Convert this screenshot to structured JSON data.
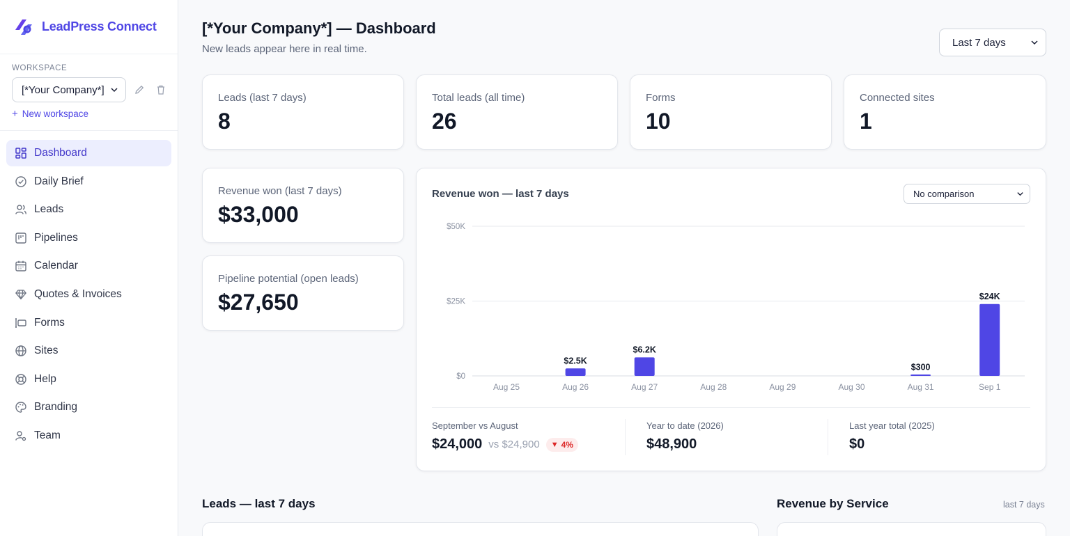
{
  "brand": {
    "name": "LeadPress Connect",
    "accent": "#4f46e5"
  },
  "workspace": {
    "label": "WORKSPACE",
    "selected": "[*Your Company*]",
    "new_label": "New workspace"
  },
  "nav": {
    "items": [
      {
        "label": "Dashboard",
        "icon": "dashboard-icon",
        "active": true
      },
      {
        "label": "Daily Brief",
        "icon": "check-circle-icon"
      },
      {
        "label": "Leads",
        "icon": "users-icon"
      },
      {
        "label": "Pipelines",
        "icon": "pipeline-icon"
      },
      {
        "label": "Calendar",
        "icon": "calendar-icon"
      },
      {
        "label": "Quotes & Invoices",
        "icon": "diamond-icon"
      },
      {
        "label": "Forms",
        "icon": "forms-icon"
      },
      {
        "label": "Sites",
        "icon": "globe-icon"
      },
      {
        "label": "Help",
        "icon": "lifebuoy-icon"
      },
      {
        "label": "Branding",
        "icon": "palette-icon"
      },
      {
        "label": "Team",
        "icon": "team-icon"
      }
    ]
  },
  "header": {
    "title": "[*Your Company*] — Dashboard",
    "subtitle": "New leads appear here in real time.",
    "range": "Last 7 days"
  },
  "stats": [
    {
      "label": "Leads (last 7 days)",
      "value": "8"
    },
    {
      "label": "Total leads (all time)",
      "value": "26"
    },
    {
      "label": "Forms",
      "value": "10"
    },
    {
      "label": "Connected sites",
      "value": "1"
    }
  ],
  "revenue": {
    "won_label": "Revenue won (last 7 days)",
    "won_value": "$33,000",
    "pipeline_label": "Pipeline potential (open leads)",
    "pipeline_value": "$27,650"
  },
  "chart_panel": {
    "title": "Revenue won — last 7 days",
    "comparison": "No comparison",
    "summary": {
      "month_label": "September vs August",
      "month_value": "$24,000",
      "month_vs": "vs $24,900",
      "month_change": "4%",
      "ytd_label": "Year to date (2026)",
      "ytd_value": "$48,900",
      "last_year_label": "Last year total (2025)",
      "last_year_value": "$0"
    }
  },
  "chart_data": {
    "type": "bar",
    "title": "Revenue won — last 7 days",
    "categories": [
      "Aug 25",
      "Aug 26",
      "Aug 27",
      "Aug 28",
      "Aug 29",
      "Aug 30",
      "Aug 31",
      "Sep 1"
    ],
    "values": [
      0,
      2500,
      6200,
      0,
      0,
      0,
      300,
      24000
    ],
    "data_labels": [
      "",
      "$2.5K",
      "$6.2K",
      "",
      "",
      "",
      "$300",
      "$24K"
    ],
    "yticks": [
      0,
      25000,
      50000
    ],
    "ytick_labels": [
      "$0",
      "$25K",
      "$50K"
    ],
    "ylim": [
      0,
      50000
    ],
    "grid": true,
    "bar_color": "#4f46e5"
  },
  "sections": {
    "leads_title": "Leads — last 7 days",
    "service_title": "Revenue by Service",
    "service_hint": "last 7 days"
  }
}
